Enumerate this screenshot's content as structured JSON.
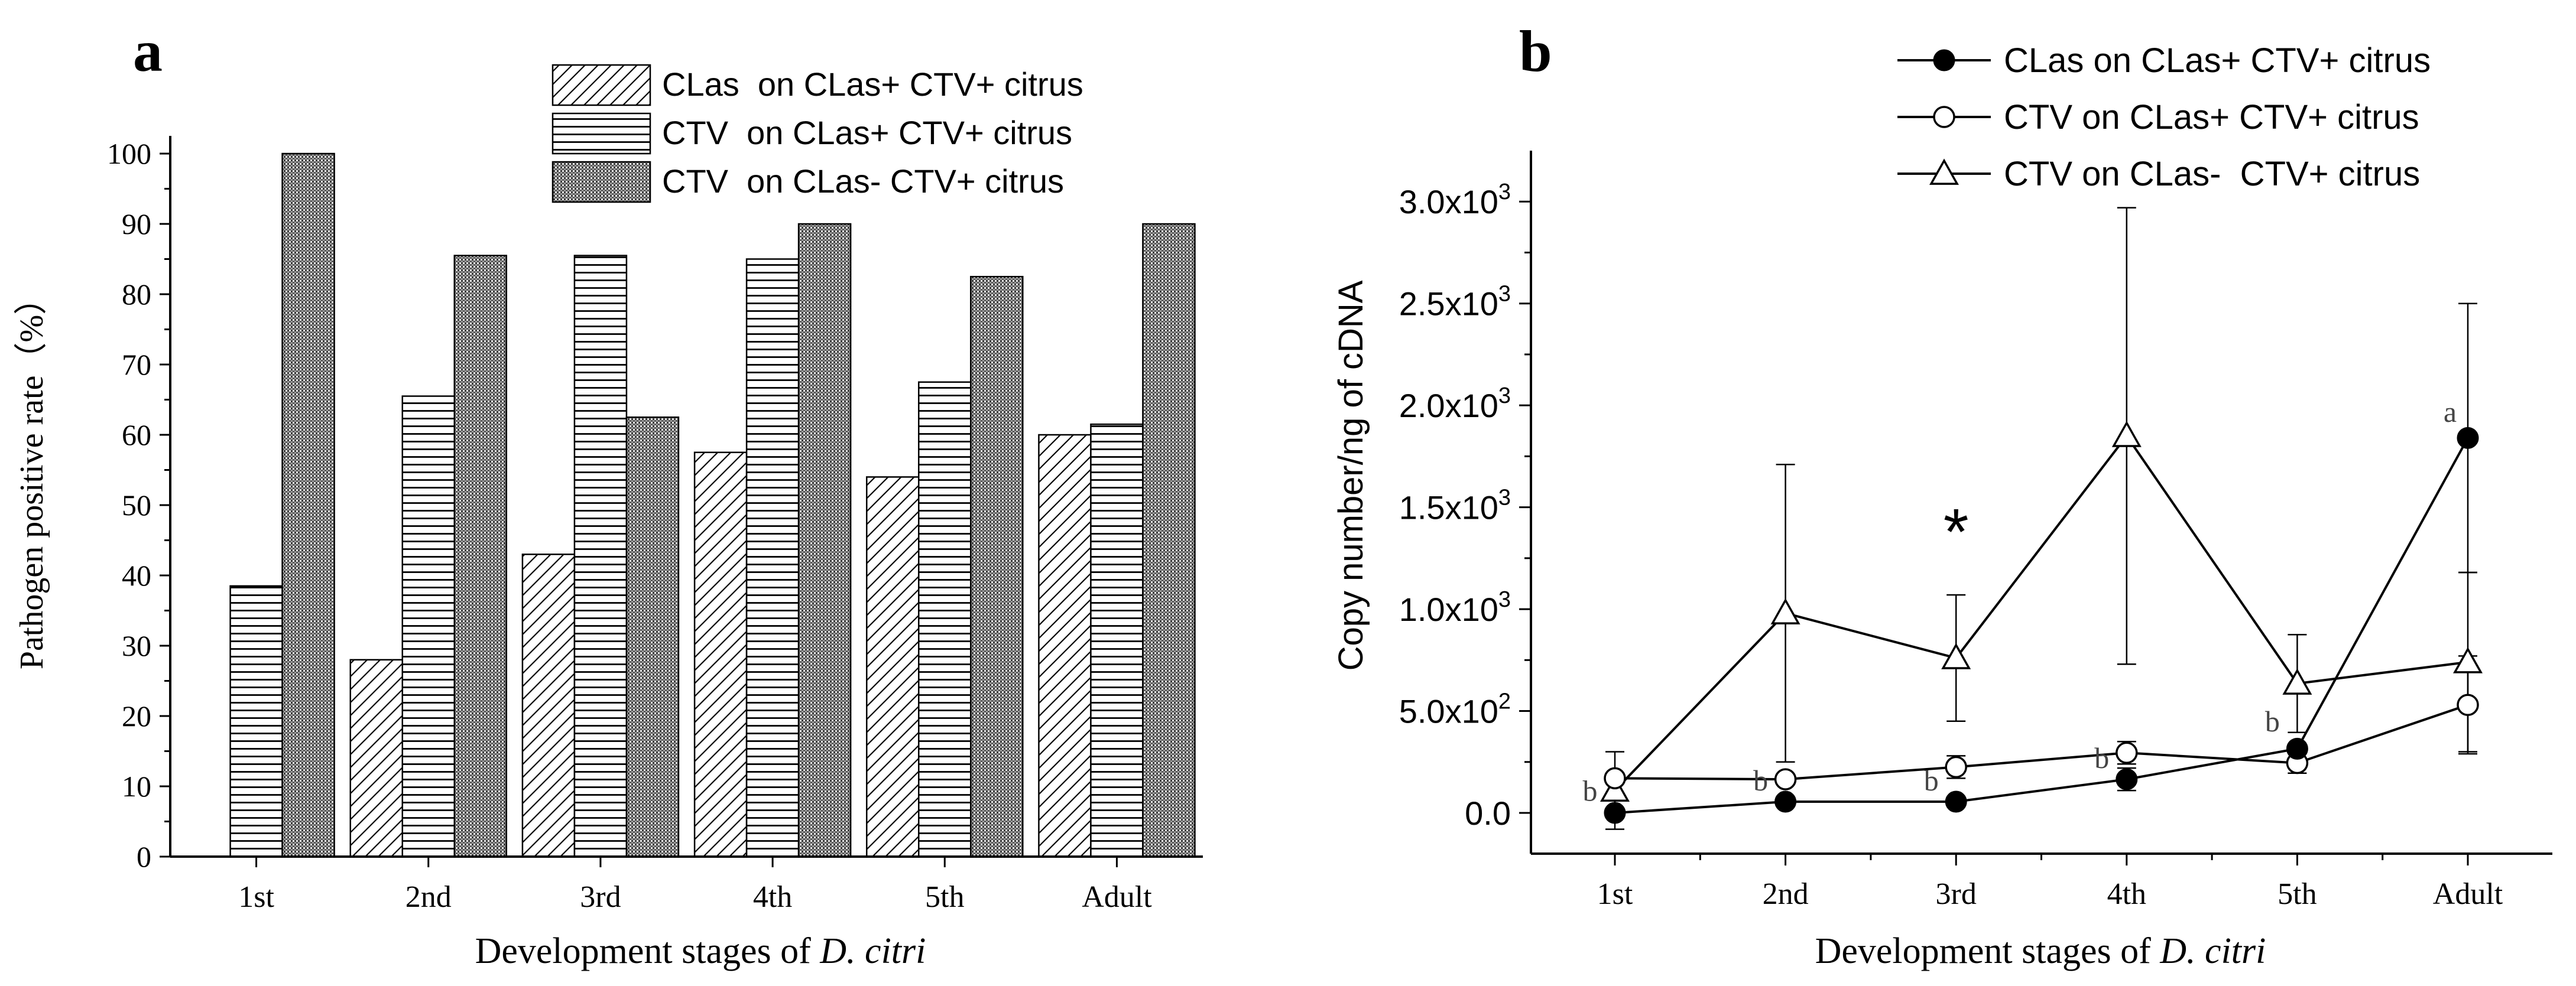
{
  "panel_labels": {
    "a": "a",
    "b": "b"
  },
  "colors": {
    "ink": "#000000",
    "bar_fill": "#ffffff",
    "background": "#ffffff"
  },
  "chart_data": [
    {
      "id": "panel-a",
      "type": "bar",
      "title": "",
      "xlabel": "Development stages of D. citri",
      "xlabel_parts": {
        "prefix": "Development stages of ",
        "italic": "D. citri"
      },
      "ylabel": "Pathogen positive rate（%）",
      "ylim": [
        0,
        100
      ],
      "yticks": [
        0,
        10,
        20,
        30,
        40,
        50,
        60,
        70,
        80,
        90,
        100
      ],
      "categories": [
        "1st",
        "2nd",
        "3rd",
        "4th",
        "5th",
        "Adult"
      ],
      "legend_position": "top-right",
      "series": [
        {
          "name": "CLas  on CLas+ CTV+ citrus",
          "pattern": "diagonal-hatch",
          "values": [
            0,
            28,
            43,
            57.5,
            54,
            60
          ]
        },
        {
          "name": "CTV  on CLas+ CTV+ citrus",
          "pattern": "horizontal-lines",
          "values": [
            38.5,
            65.5,
            85.5,
            85,
            67.5,
            61.5
          ]
        },
        {
          "name": "CTV  on CLas- CTV+ citrus",
          "pattern": "dense-crosshatch",
          "values": [
            100,
            85.5,
            62.5,
            90,
            82.5,
            90
          ]
        }
      ]
    },
    {
      "id": "panel-b",
      "type": "line",
      "title": "",
      "xlabel": "Development stages of D. citri",
      "xlabel_parts": {
        "prefix": "Development stages of ",
        "italic": "D. citri"
      },
      "ylabel": "Copy number/ng of cDNA",
      "ylim": [
        -200,
        3250
      ],
      "yticks": [
        0,
        500,
        1000,
        1500,
        2000,
        2500,
        3000
      ],
      "ytick_labels": [
        {
          "base": "0.0",
          "exp": ""
        },
        {
          "base": "5.0x10",
          "exp": "2"
        },
        {
          "base": "1.0x10",
          "exp": "3"
        },
        {
          "base": "1.5x10",
          "exp": "3"
        },
        {
          "base": "2.0x10",
          "exp": "3"
        },
        {
          "base": "2.5x10",
          "exp": "3"
        },
        {
          "base": "3.0x10",
          "exp": "3"
        }
      ],
      "categories": [
        "1st",
        "2nd",
        "3rd",
        "4th",
        "5th",
        "Adult"
      ],
      "legend_position": "top-right",
      "series": [
        {
          "name": "CLas on CLas+ CTV+ citrus",
          "marker": "filled-circle",
          "values": [
            0,
            55,
            55,
            165,
            315,
            1840
          ],
          "errors": [
            0,
            0,
            0,
            55,
            0,
            660
          ]
        },
        {
          "name": "CTV on CLas+ CTV+ citrus",
          "marker": "open-circle",
          "values": [
            170,
            165,
            225,
            295,
            245,
            530
          ],
          "errors": [
            0,
            0,
            55,
            55,
            50,
            240
          ]
        },
        {
          "name": "CTV on CLas-  CTV+ citrus",
          "marker": "open-triangle",
          "values": [
            110,
            980,
            760,
            1850,
            635,
            740
          ],
          "errors": [
            190,
            730,
            310,
            1120,
            240,
            440
          ]
        }
      ],
      "annotations": [
        {
          "text": "b",
          "category": "1st",
          "value": 60
        },
        {
          "text": "b",
          "category": "2nd",
          "value": 110
        },
        {
          "text": "b",
          "category": "3rd",
          "value": 110
        },
        {
          "text": "b",
          "category": "4th",
          "value": 220
        },
        {
          "text": "b",
          "category": "5th",
          "value": 400
        },
        {
          "text": "a",
          "category": "Adult",
          "value": 1920
        },
        {
          "text": "*",
          "category": "3rd",
          "value": 1270
        }
      ]
    }
  ]
}
